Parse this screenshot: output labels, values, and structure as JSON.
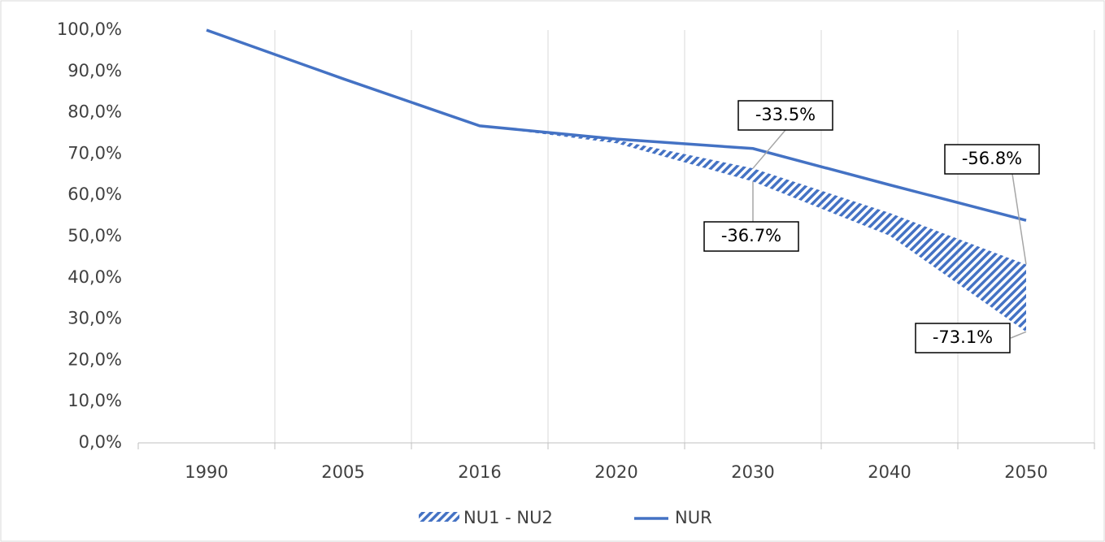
{
  "chart_data": {
    "type": "line",
    "categories": [
      "1990",
      "2005",
      "2016",
      "2020",
      "2030",
      "2040",
      "2050"
    ],
    "series": [
      {
        "name": "NU1 - NU2",
        "type": "band",
        "color": "#4472c4",
        "upper": [
          null,
          null,
          76.8,
          73.4,
          66.5,
          55.7,
          43.2
        ],
        "lower": [
          null,
          null,
          76.8,
          72.6,
          63.3,
          50.2,
          26.9
        ]
      },
      {
        "name": "NUR",
        "type": "line",
        "color": "#4472c4",
        "values": [
          100,
          88.2,
          76.8,
          73.6,
          71.3,
          62.5,
          53.9
        ]
      }
    ],
    "annotations": [
      "-33.5%",
      "-36.7%",
      "-56.8%",
      "-73.1%"
    ],
    "ylim": [
      0,
      100
    ],
    "yticks": [
      {
        "value": 0,
        "label": "0,0%"
      },
      {
        "value": 10,
        "label": "10,0%"
      },
      {
        "value": 20,
        "label": "20,0%"
      },
      {
        "value": 30,
        "label": "30,0%"
      },
      {
        "value": 40,
        "label": "40,0%"
      },
      {
        "value": 50,
        "label": "50,0%"
      },
      {
        "value": 60,
        "label": "60,0%"
      },
      {
        "value": 70,
        "label": "70,0%"
      },
      {
        "value": 80,
        "label": "80,0%"
      },
      {
        "value": 90,
        "label": "90,0%"
      },
      {
        "value": 100,
        "label": "100,0%"
      }
    ],
    "legend": "bottom"
  }
}
